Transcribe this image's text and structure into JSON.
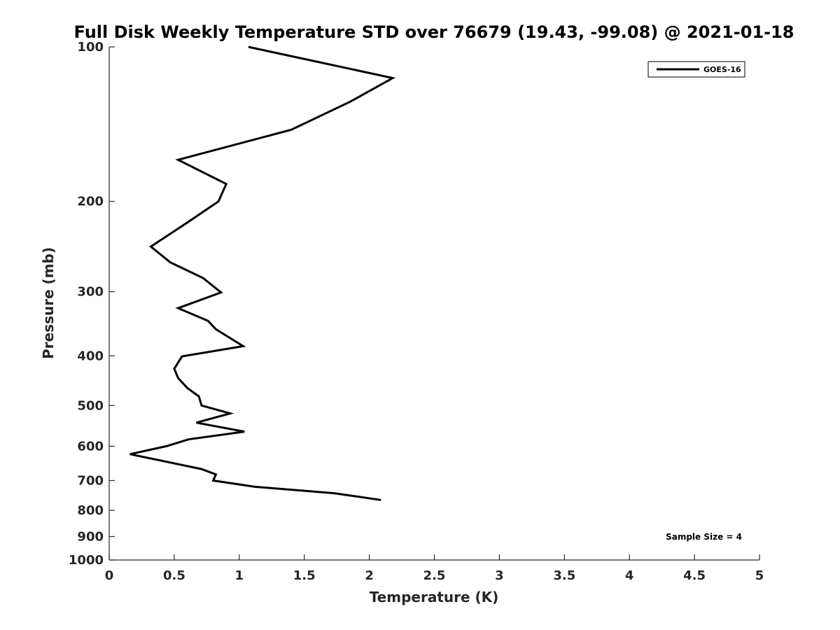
{
  "chart_data": {
    "type": "line",
    "title": "Full Disk Weekly Temperature STD over 76679 (19.43, -99.08) @ 2021-01-18",
    "xlabel": "Temperature (K)",
    "ylabel": "Pressure (mb)",
    "xlim": [
      0,
      5
    ],
    "ylim": [
      100,
      1000
    ],
    "y_scale": "log",
    "y_reversed": true,
    "x_ticks": [
      0,
      0.5,
      1,
      1.5,
      2,
      2.5,
      3,
      3.5,
      4,
      4.5,
      5
    ],
    "x_tick_labels": [
      "0",
      "0.5",
      "1",
      "1.5",
      "2",
      "2.5",
      "3",
      "3.5",
      "4",
      "4.5",
      "5"
    ],
    "y_ticks": [
      100,
      200,
      300,
      400,
      500,
      600,
      700,
      800,
      900,
      1000
    ],
    "y_tick_labels": [
      "100",
      "200",
      "300",
      "400",
      "500",
      "600",
      "700",
      "800",
      "900",
      "1000"
    ],
    "grid": false,
    "legend_position": "top-right",
    "series": [
      {
        "name": "GOES-16",
        "color": "#000000",
        "points": [
          [
            1.07,
            100
          ],
          [
            2.18,
            115
          ],
          [
            1.85,
            128
          ],
          [
            1.4,
            145
          ],
          [
            0.53,
            166
          ],
          [
            0.9,
            185
          ],
          [
            0.84,
            200
          ],
          [
            0.6,
            220
          ],
          [
            0.32,
            245
          ],
          [
            0.47,
            263
          ],
          [
            0.72,
            282
          ],
          [
            0.86,
            301
          ],
          [
            0.53,
            323
          ],
          [
            0.76,
            342
          ],
          [
            0.82,
            355
          ],
          [
            1.03,
            383
          ],
          [
            0.56,
            401
          ],
          [
            0.5,
            424
          ],
          [
            0.53,
            442
          ],
          [
            0.6,
            462
          ],
          [
            0.69,
            480
          ],
          [
            0.71,
            500
          ],
          [
            0.93,
            518
          ],
          [
            0.67,
            540
          ],
          [
            1.04,
            562
          ],
          [
            0.61,
            582
          ],
          [
            0.44,
            600
          ],
          [
            0.16,
            622
          ],
          [
            0.46,
            645
          ],
          [
            0.71,
            665
          ],
          [
            0.82,
            681
          ],
          [
            0.8,
            700
          ],
          [
            1.12,
            720
          ],
          [
            1.73,
            741
          ],
          [
            2.09,
            764
          ]
        ]
      }
    ],
    "annotation": "Sample Size = 4"
  }
}
